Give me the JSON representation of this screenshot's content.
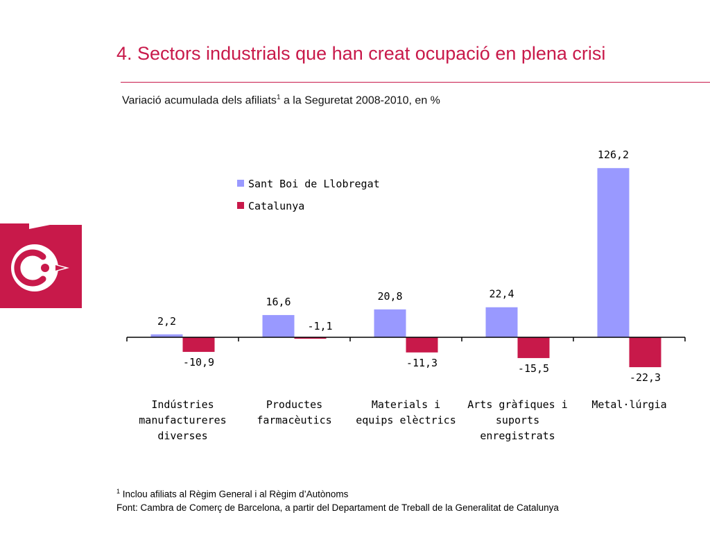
{
  "header": {
    "title": "4. Sectors industrials que han creat ocupació en plena crisi",
    "subtitle_pre": "Variació acumulada dels afiliats",
    "subtitle_sup": "1",
    "subtitle_post": " a la Seguretat 2008-2010, en %"
  },
  "footnotes": {
    "note_sup": "1",
    "note_text": " Inclou afiliats al Règim General i al Règim d’Autònoms",
    "source": "Font: Cambra de Comerç de Barcelona, a partir del Departament de Treball de la Generalitat de Catalunya"
  },
  "logo": {
    "icon": "cambra-comerc-logo-icon",
    "color": "#c8194a"
  },
  "chart_data": {
    "type": "bar",
    "title": "Variació acumulada dels afiliats a la Seguretat 2008-2010, en %",
    "categories": [
      [
        "Indústries",
        "manufactureres",
        "diverses"
      ],
      [
        "Productes",
        "farmacèutics"
      ],
      [
        "Materials i",
        "equips elèctrics"
      ],
      [
        "Arts gràfiques i",
        "suports",
        "enregistrats"
      ],
      [
        "Metal·lúrgia"
      ]
    ],
    "series": [
      {
        "name": "Sant Boi de Llobregat",
        "color": "#9999ff",
        "values": [
          2.2,
          16.6,
          20.8,
          22.4,
          126.2
        ],
        "labels": [
          "2,2",
          "16,6",
          "20,8",
          "22,4",
          "126,2"
        ]
      },
      {
        "name": "Catalunya",
        "color": "#c8194a",
        "values": [
          -10.9,
          -1.1,
          -11.3,
          -15.5,
          -22.3
        ],
        "labels": [
          "-10,9",
          "-1,1",
          "-11,3",
          "-15,5",
          "-22,3"
        ]
      }
    ],
    "legend_position": "top-left",
    "xlabel": "",
    "ylabel": "",
    "ylim": [
      -30,
      130
    ],
    "grid": false
  }
}
